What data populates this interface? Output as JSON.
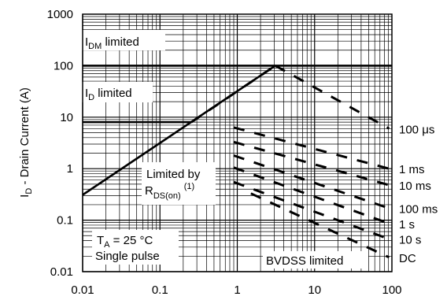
{
  "chart_data": {
    "type": "line",
    "title": "",
    "xlabel": "",
    "ylabel": "I_D - Drain Current (A)",
    "ylabel_parts": {
      "main": "I",
      "sub": "D",
      "rest": " - Drain Current (A)"
    },
    "x_scale": "log",
    "y_scale": "log",
    "xlim": [
      0.01,
      100
    ],
    "ylim": [
      0.01,
      1000
    ],
    "x_ticks": [
      "0.01",
      "0.1",
      "1",
      "10",
      "100"
    ],
    "y_ticks": [
      "1000",
      "100",
      "10",
      "1",
      "0.1",
      "0.01"
    ],
    "grid": true,
    "series": [
      {
        "key": "idm_limit",
        "style": "solid",
        "points": [
          [
            0.01,
            100
          ],
          [
            100,
            100
          ]
        ]
      },
      {
        "key": "id_limit",
        "style": "solid",
        "points": [
          [
            0.01,
            8
          ],
          [
            0.255,
            8
          ]
        ]
      },
      {
        "key": "rds_on",
        "style": "solid",
        "points": [
          [
            0.01,
            0.31
          ],
          [
            3.1,
            100
          ]
        ]
      },
      {
        "key": "t100us",
        "style": "dashed",
        "points": [
          [
            0.255,
            8
          ],
          [
            3.1,
            100
          ]
        ]
      },
      {
        "key": "t100us_flat",
        "style": "dashed",
        "points": [
          [
            3.1,
            100
          ],
          [
            92,
            6.0
          ]
        ]
      },
      {
        "key": "t1ms",
        "style": "dashed",
        "points": [
          [
            0.9,
            6.3
          ],
          [
            92,
            1.0
          ]
        ]
      },
      {
        "key": "t10ms",
        "style": "dashed",
        "points": [
          [
            0.9,
            3.3
          ],
          [
            92,
            0.48
          ]
        ]
      },
      {
        "key": "t100ms",
        "style": "dashed",
        "points": [
          [
            0.9,
            1.8
          ],
          [
            92,
            0.17
          ]
        ]
      },
      {
        "key": "t1s",
        "style": "dashed",
        "points": [
          [
            0.9,
            1.05
          ],
          [
            92,
            0.086
          ]
        ]
      },
      {
        "key": "t10s",
        "style": "dashed",
        "points": [
          [
            0.9,
            0.55
          ],
          [
            92,
            0.043
          ]
        ]
      },
      {
        "key": "dc",
        "style": "dashed",
        "points": [
          [
            1.5,
            0.33
          ],
          [
            92,
            0.019
          ]
        ]
      }
    ],
    "curve_labels": [
      {
        "text": "100 μs",
        "x": 100,
        "y": 6.0
      },
      {
        "text": "1 ms",
        "x": 100,
        "y": 1.0
      },
      {
        "text": "10 ms",
        "x": 100,
        "y": 0.48
      },
      {
        "text": "100 ms",
        "x": 100,
        "y": 0.17
      },
      {
        "text": "1 s",
        "x": 100,
        "y": 0.086
      },
      {
        "text": "10 s",
        "x": 100,
        "y": 0.043
      },
      {
        "text": "DC",
        "x": 100,
        "y": 0.019
      }
    ],
    "annotations": {
      "idm": {
        "main": "I",
        "sub": "DM",
        "rest": " limited"
      },
      "id": {
        "main": "I",
        "sub": "D",
        "rest": " limited"
      },
      "rds_line1": "Limited by",
      "rds_line2": {
        "main": "R",
        "sub": "DS(on)",
        "sup": "(1)"
      },
      "ta": {
        "main": "T",
        "sub": "A",
        "rest": " = 25 °C"
      },
      "single_pulse": "Single pulse",
      "bvdss": "BVDSS limited"
    }
  },
  "colors": {
    "line": "#000000",
    "grid": "#000000",
    "background": "#ffffff"
  }
}
